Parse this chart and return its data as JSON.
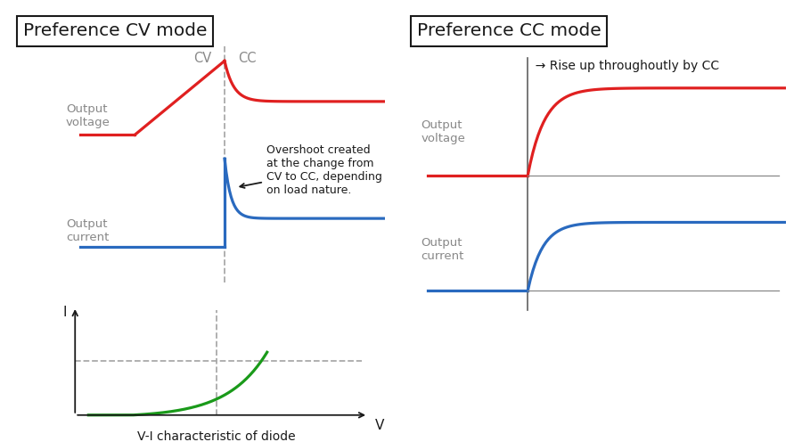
{
  "bg_color": "#ffffff",
  "gray_text": "#888888",
  "dark_color": "#1a1a1a",
  "red_color": "#e02020",
  "blue_color": "#2a6abf",
  "green_color": "#1a9a1a",
  "gray_line": "#aaaaaa",
  "gray_refline": "#888888",
  "title_left": "Preference CV mode",
  "title_right": "Preference CC mode",
  "label_output_voltage": "Output\nvoltage",
  "label_output_current": "Output\ncurrent",
  "label_vi": "V-I characteristic of diode",
  "label_cv": "CV",
  "label_cc": "CC",
  "label_I": "I",
  "label_V": "V",
  "annotation_overshoot": "Overshoot created\nat the change from\nCV to CC, depending\non load nature.",
  "annotation_rise": "  → Rise up throughoutly by CC"
}
